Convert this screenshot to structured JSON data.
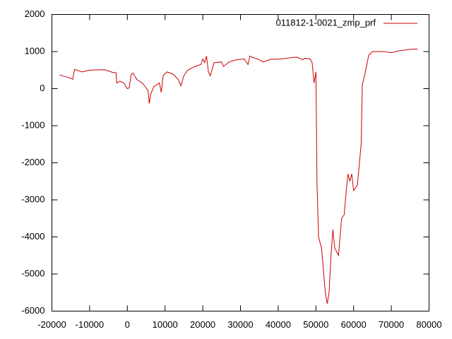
{
  "chart_data": {
    "type": "line",
    "x": [
      -18000,
      -15000,
      -14500,
      -14000,
      -12000,
      -10000,
      -6000,
      -4000,
      -3000,
      -2800,
      -2000,
      -1000,
      0,
      500,
      1000,
      1500,
      2500,
      4000,
      5500,
      5800,
      6200,
      7000,
      8500,
      9000,
      9500,
      10500,
      12000,
      13500,
      14200,
      15000,
      16000,
      18000,
      19500,
      20000,
      20500,
      21000,
      21500,
      22000,
      23000,
      25000,
      25500,
      27000,
      29000,
      31000,
      32000,
      32500,
      33000,
      35000,
      36000,
      38000,
      41000,
      43000,
      45000,
      46500,
      47000,
      48500,
      49000,
      49500,
      50000,
      50300,
      50700,
      51500,
      52500,
      53000,
      53500,
      54000,
      54500,
      55000,
      56000,
      56800,
      57500,
      58000,
      58500,
      59000,
      59500,
      60000,
      61000,
      62000,
      62300,
      63000,
      64000,
      65000,
      68000,
      70000,
      72000,
      75000,
      77000
    ],
    "series": [
      {
        "name": "011812-1-0021_zmp_prf",
        "color": "#cc0000",
        "values": [
          370,
          280,
          250,
          520,
          450,
          500,
          510,
          440,
          430,
          150,
          200,
          160,
          0,
          20,
          380,
          420,
          250,
          150,
          -50,
          -400,
          -150,
          50,
          150,
          -100,
          350,
          450,
          400,
          250,
          80,
          350,
          500,
          600,
          650,
          800,
          700,
          880,
          450,
          350,
          700,
          720,
          600,
          720,
          780,
          800,
          650,
          880,
          850,
          780,
          720,
          790,
          800,
          830,
          850,
          780,
          820,
          800,
          700,
          150,
          450,
          -2600,
          -4000,
          -4300,
          -5500,
          -5800,
          -5500,
          -4500,
          -3800,
          -4300,
          -4500,
          -3500,
          -3400,
          -2800,
          -2300,
          -2500,
          -2300,
          -2750,
          -2600,
          -1500,
          100,
          400,
          900,
          1000,
          1000,
          970,
          1020,
          1060,
          1070
        ]
      }
    ],
    "xlim": [
      -20000,
      80000
    ],
    "xticks": [
      -20000,
      -10000,
      0,
      10000,
      20000,
      30000,
      40000,
      50000,
      60000,
      70000,
      80000
    ],
    "ylim": [
      -6000,
      2000
    ],
    "yticks": [
      -6000,
      -5000,
      -4000,
      -3000,
      -2000,
      -1000,
      0,
      1000,
      2000
    ],
    "legend": "top-right"
  }
}
